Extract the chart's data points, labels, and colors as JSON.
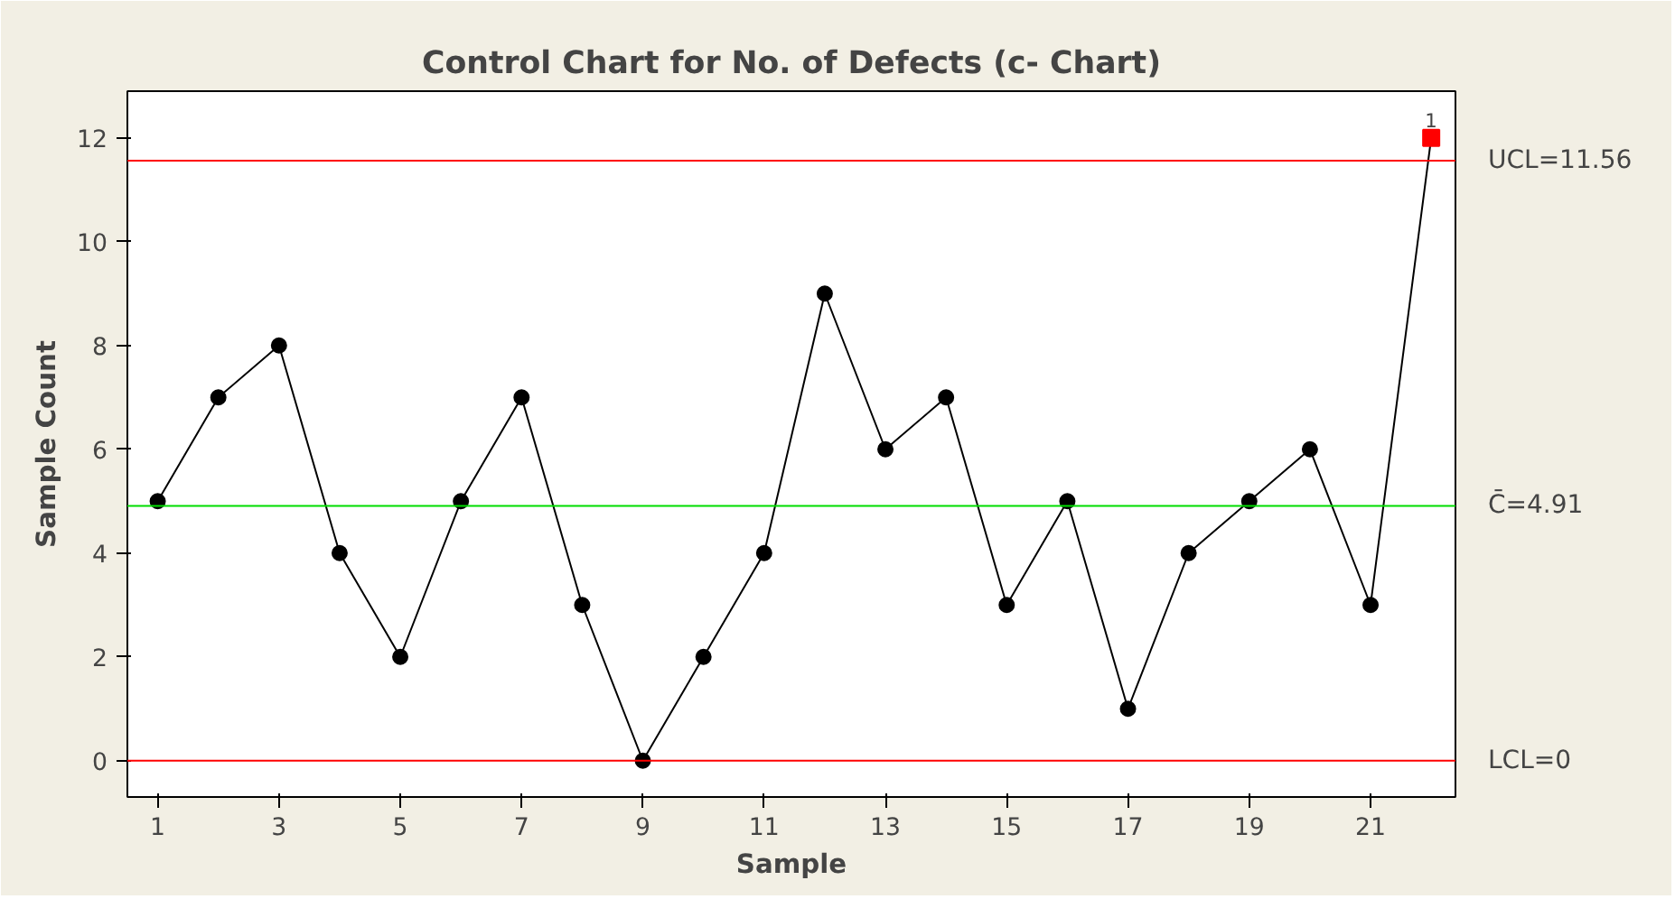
{
  "chart_data": {
    "type": "line",
    "title": "Control Chart for No. of Defects (c- Chart)",
    "xlabel": "Sample",
    "ylabel": "Sample Count",
    "x": [
      1,
      2,
      3,
      4,
      5,
      6,
      7,
      8,
      9,
      10,
      11,
      12,
      13,
      14,
      15,
      16,
      17,
      18,
      19,
      20,
      21,
      22
    ],
    "series": [
      {
        "color": "#000000",
        "values": [
          5,
          7,
          8,
          4,
          2,
          5,
          7,
          3,
          0,
          2,
          4,
          9,
          6,
          7,
          3,
          5,
          1,
          4,
          5,
          6,
          3,
          12
        ],
        "marker": "circle"
      },
      {
        "type": "scatter",
        "x": [
          22
        ],
        "color": "#ff0000",
        "values": [
          12
        ],
        "marker": "square"
      }
    ],
    "annotations": [
      {
        "text": "1",
        "x": 22,
        "y": 12
      }
    ],
    "ref_lines": [
      {
        "axis": "y",
        "value": 11.56,
        "label": "UCL=11.56",
        "color": "#ff0000"
      },
      {
        "axis": "y",
        "value": 4.91,
        "label": "C̄=4.91",
        "color": "#00dd00"
      },
      {
        "axis": "y",
        "value": 0,
        "label": "LCL=0",
        "color": "#ff0000"
      }
    ],
    "xlim": [
      0.5,
      22.4
    ],
    "ylim": [
      -0.7,
      12.9
    ],
    "xticks": [
      1,
      3,
      5,
      7,
      9,
      11,
      13,
      15,
      17,
      19,
      21
    ],
    "yticks": [
      0,
      2,
      4,
      6,
      8,
      10,
      12
    ],
    "grid": false
  }
}
